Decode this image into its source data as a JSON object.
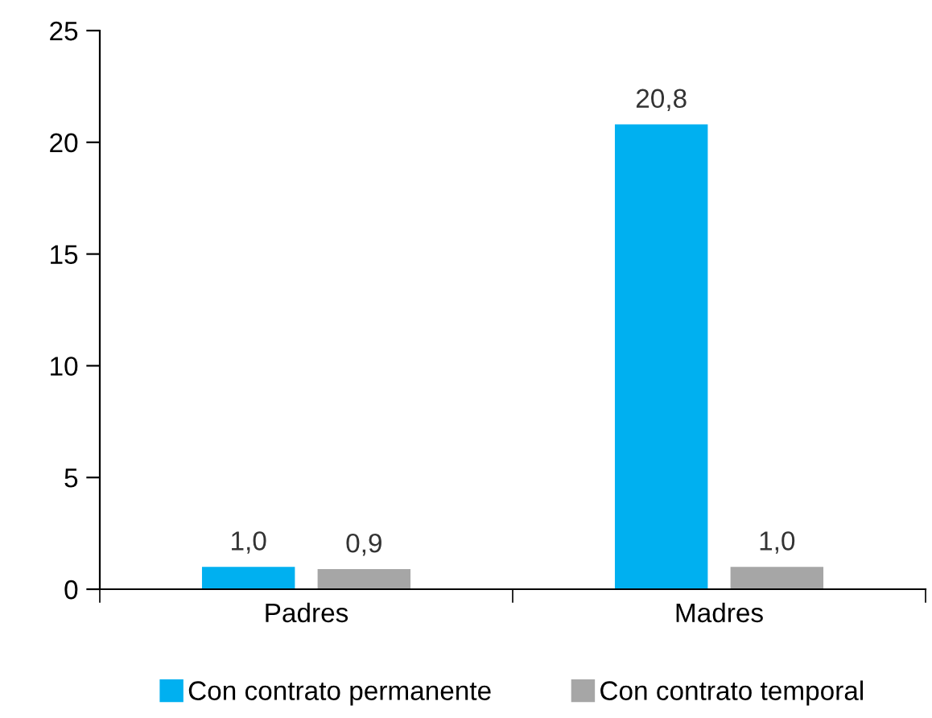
{
  "chart_data": {
    "type": "bar",
    "categories": [
      "Padres",
      "Madres"
    ],
    "series": [
      {
        "name": "Con contrato permanente",
        "color": "#00b0f0",
        "values": [
          1.0,
          20.8
        ],
        "value_labels": [
          "1,0",
          "20,8"
        ]
      },
      {
        "name": "Con contrato temporal",
        "color": "#a6a6a6",
        "values": [
          0.9,
          1.0
        ],
        "value_labels": [
          "0,9",
          "1,0"
        ]
      }
    ],
    "ylim": [
      0,
      25
    ],
    "yticks": [
      0,
      5,
      10,
      15,
      20,
      25
    ],
    "grid": false,
    "legend": "bottom"
  }
}
